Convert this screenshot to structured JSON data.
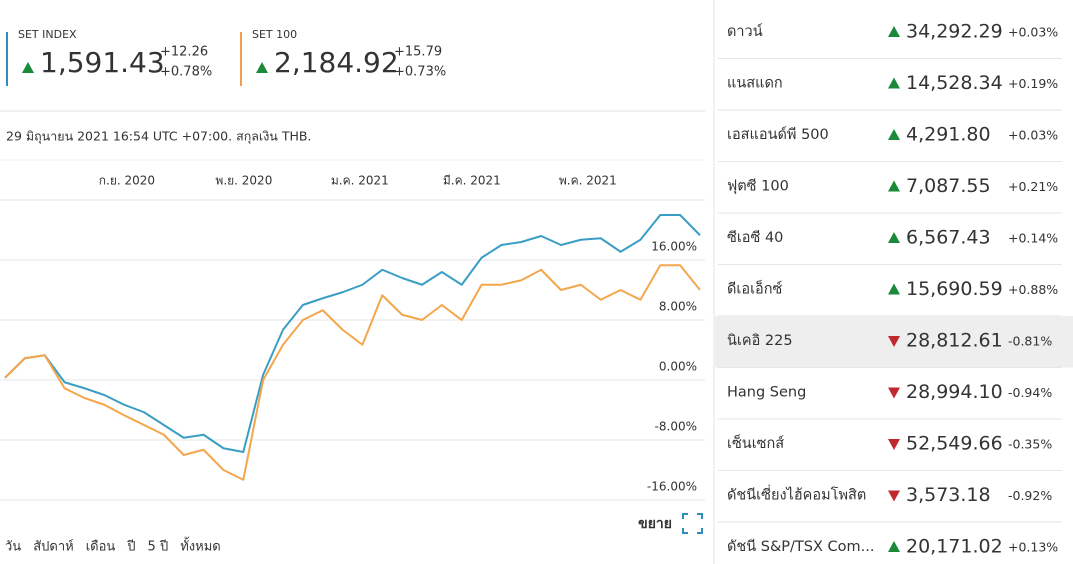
{
  "tickers": [
    {
      "name": "SET INDEX",
      "value": "1,591.43",
      "change": "+12.26",
      "change_pct": "+0.78%",
      "color": "#2e8fbf"
    },
    {
      "name": "SET 100",
      "value": "2,184.92",
      "change": "+15.79",
      "change_pct": "+0.73%",
      "color": "#f0a04b"
    }
  ],
  "timestamp": "29 มิถุนายน 2021 16:54 UTC +07:00. สกุลเงิน THB.",
  "chart_data": {
    "type": "line",
    "series": [
      {
        "color": "#3a9ec4",
        "values": [
          0.3,
          2.9,
          3.3,
          -0.3,
          -1.1,
          -2.0,
          -3.3,
          -4.3,
          -6.0,
          -7.7,
          -7.3,
          -9.1,
          -9.6,
          0.7,
          6.7,
          10.0,
          10.9,
          11.7,
          12.7,
          14.7,
          13.6,
          12.7,
          14.4,
          12.7,
          16.3,
          18.0,
          18.4,
          19.2,
          18.0,
          18.7,
          18.9,
          17.1,
          18.7,
          22.0,
          22.0,
          19.3
        ]
      },
      {
        "color": "#f3a64b",
        "values": [
          0.3,
          2.9,
          3.3,
          -1.1,
          -2.4,
          -3.3,
          -4.7,
          -6.0,
          -7.3,
          -10.0,
          -9.3,
          -12.0,
          -13.3,
          0.0,
          4.7,
          8.0,
          9.3,
          6.7,
          4.7,
          11.3,
          8.7,
          8.0,
          10.0,
          8.0,
          12.7,
          12.7,
          13.3,
          14.7,
          12.0,
          12.7,
          10.7,
          12.0,
          10.7,
          15.3,
          15.3,
          12.0
        ]
      }
    ],
    "xlim": [
      0,
      35
    ],
    "xticks": [
      {
        "value": 6.14,
        "label": "ก.ย. 2020"
      },
      {
        "value": 12.03,
        "label": "พ.ย. 2020"
      },
      {
        "value": 17.87,
        "label": "ม.ค. 2021"
      },
      {
        "value": 23.51,
        "label": "มี.ค. 2021"
      },
      {
        "value": 29.35,
        "label": "พ.ค. 2021"
      }
    ],
    "ylim": [
      -16,
      24
    ],
    "yticks": [
      {
        "value": 16,
        "label": "16.00%"
      },
      {
        "value": 8,
        "label": "8.00%"
      },
      {
        "value": 0,
        "label": "0.00%"
      },
      {
        "value": -8,
        "label": "-8.00%"
      },
      {
        "value": -16,
        "label": "-16.00%"
      }
    ],
    "grid": true
  },
  "expand_label": "ขยาย",
  "timeframes": [
    "วัน",
    "สัปดาห์",
    "เดือน",
    "ปี",
    "5 ปี",
    "ทั้งหมด"
  ],
  "markets": {
    "up_color": "#1a8a3a",
    "down_color": "#c0282f",
    "highlighted": 6,
    "rows": [
      {
        "name": "ดาวน์",
        "value": "34,292.29",
        "change_pct": "+0.03%",
        "direction": "up"
      },
      {
        "name": "แนสแดก",
        "value": "14,528.34",
        "change_pct": "+0.19%",
        "direction": "up"
      },
      {
        "name": "เอสแอนด์พี 500",
        "value": "4,291.80",
        "change_pct": "+0.03%",
        "direction": "up"
      },
      {
        "name": "ฟุตซี 100",
        "value": "7,087.55",
        "change_pct": "+0.21%",
        "direction": "up"
      },
      {
        "name": "ซีเอซี 40",
        "value": "6,567.43",
        "change_pct": "+0.14%",
        "direction": "up"
      },
      {
        "name": "ดีเอเอ็กซ์",
        "value": "15,690.59",
        "change_pct": "+0.88%",
        "direction": "up"
      },
      {
        "name": "นิเคอิ 225",
        "value": "28,812.61",
        "change_pct": "-0.81%",
        "direction": "down"
      },
      {
        "name": "Hang Seng",
        "value": "28,994.10",
        "change_pct": "-0.94%",
        "direction": "down"
      },
      {
        "name": "เซ็นเซกส์",
        "value": "52,549.66",
        "change_pct": "-0.35%",
        "direction": "down"
      },
      {
        "name": "ดัชนีเซี่ยงไฮ้คอมโพสิต",
        "value": "3,573.18",
        "change_pct": "-0.92%",
        "direction": "down"
      },
      {
        "name": "ดัชนี S&P/TSX Com...",
        "value": "20,171.02",
        "change_pct": "+0.13%",
        "direction": "up"
      }
    ]
  }
}
